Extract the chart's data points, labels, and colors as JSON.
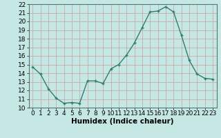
{
  "x": [
    0,
    1,
    2,
    3,
    4,
    5,
    6,
    7,
    8,
    9,
    10,
    11,
    12,
    13,
    14,
    15,
    16,
    17,
    18,
    19,
    20,
    21,
    22,
    23
  ],
  "y": [
    14.7,
    13.9,
    12.2,
    11.1,
    10.5,
    10.6,
    10.5,
    13.1,
    13.1,
    12.8,
    14.5,
    15.0,
    16.1,
    17.5,
    19.3,
    21.1,
    21.2,
    21.7,
    21.1,
    18.4,
    15.5,
    13.9,
    13.4,
    13.3
  ],
  "line_color": "#2e7d6e",
  "marker": "+",
  "bg_color": "#c5e8e5",
  "grid_color": "#c8a0a0",
  "xlabel": "Humidex (Indice chaleur)",
  "ylim": [
    10,
    22
  ],
  "xlim": [
    -0.5,
    23.5
  ],
  "yticks": [
    10,
    11,
    12,
    13,
    14,
    15,
    16,
    17,
    18,
    19,
    20,
    21,
    22
  ],
  "xticks": [
    0,
    1,
    2,
    3,
    4,
    5,
    6,
    7,
    8,
    9,
    10,
    11,
    12,
    13,
    14,
    15,
    16,
    17,
    18,
    19,
    20,
    21,
    22,
    23
  ],
  "xlabel_fontsize": 7.5,
  "tick_fontsize": 6.5
}
